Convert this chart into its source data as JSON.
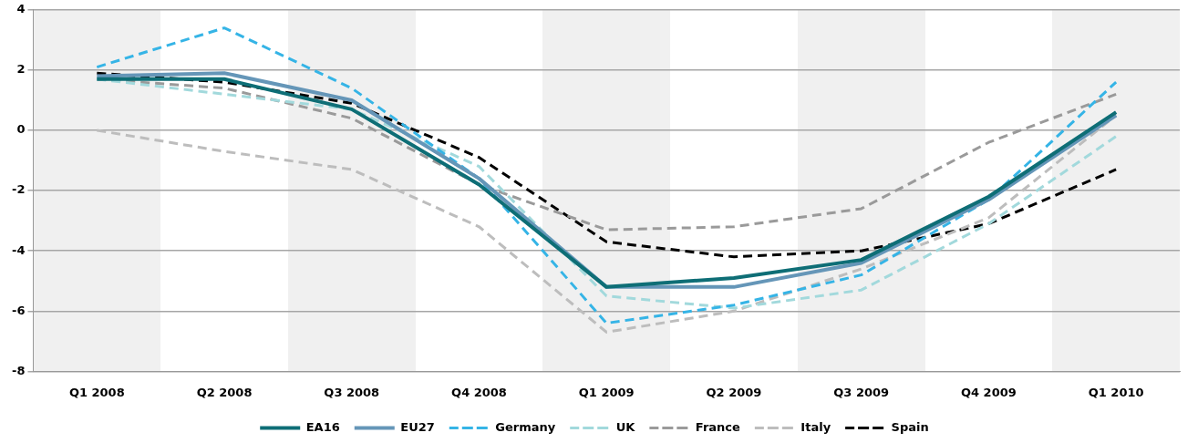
{
  "chart_data": {
    "type": "line",
    "categories": [
      "Q1 2008",
      "Q2 2008",
      "Q3 2008",
      "Q4 2008",
      "Q1 2009",
      "Q2 2009",
      "Q3 2009",
      "Q4 2009",
      "Q1 2010"
    ],
    "ylim": [
      -8,
      4
    ],
    "yticks": [
      -8,
      -6,
      -4,
      -2,
      0,
      2,
      4
    ],
    "grid": "y",
    "legend": "bottom",
    "marker": "none",
    "series": [
      {
        "name": "EA16",
        "color": "#0e6e76",
        "line_style": "solid",
        "values": [
          1.7,
          1.7,
          0.7,
          -1.8,
          -5.2,
          -4.9,
          -4.3,
          -2.2,
          0.6
        ]
      },
      {
        "name": "EU27",
        "color": "#6596b8",
        "line_style": "solid",
        "values": [
          1.8,
          1.9,
          1.0,
          -1.6,
          -5.2,
          -5.2,
          -4.4,
          -2.3,
          0.5
        ]
      },
      {
        "name": "Germany",
        "color": "#35b4e6",
        "line_style": "dashed",
        "values": [
          2.1,
          3.4,
          1.4,
          -1.6,
          -6.4,
          -5.8,
          -4.8,
          -2.3,
          1.6
        ]
      },
      {
        "name": "UK",
        "color": "#a2d9dc",
        "line_style": "dashed",
        "values": [
          1.7,
          1.2,
          0.7,
          -1.2,
          -5.5,
          -5.9,
          -5.3,
          -3.1,
          -0.2
        ]
      },
      {
        "name": "France",
        "color": "#9a9a9a",
        "line_style": "dashed",
        "values": [
          1.7,
          1.4,
          0.4,
          -1.8,
          -3.3,
          -3.2,
          -2.6,
          -0.4,
          1.2
        ]
      },
      {
        "name": "Italy",
        "color": "#bdbdbd",
        "line_style": "dashed",
        "values": [
          0.0,
          -0.7,
          -1.3,
          -3.2,
          -6.7,
          -6.0,
          -4.6,
          -2.9,
          0.5
        ]
      },
      {
        "name": "Spain",
        "color": "#000000",
        "line_style": "dashed",
        "values": [
          1.9,
          1.6,
          0.9,
          -0.9,
          -3.7,
          -4.2,
          -4.0,
          -3.1,
          -1.3
        ]
      }
    ]
  }
}
